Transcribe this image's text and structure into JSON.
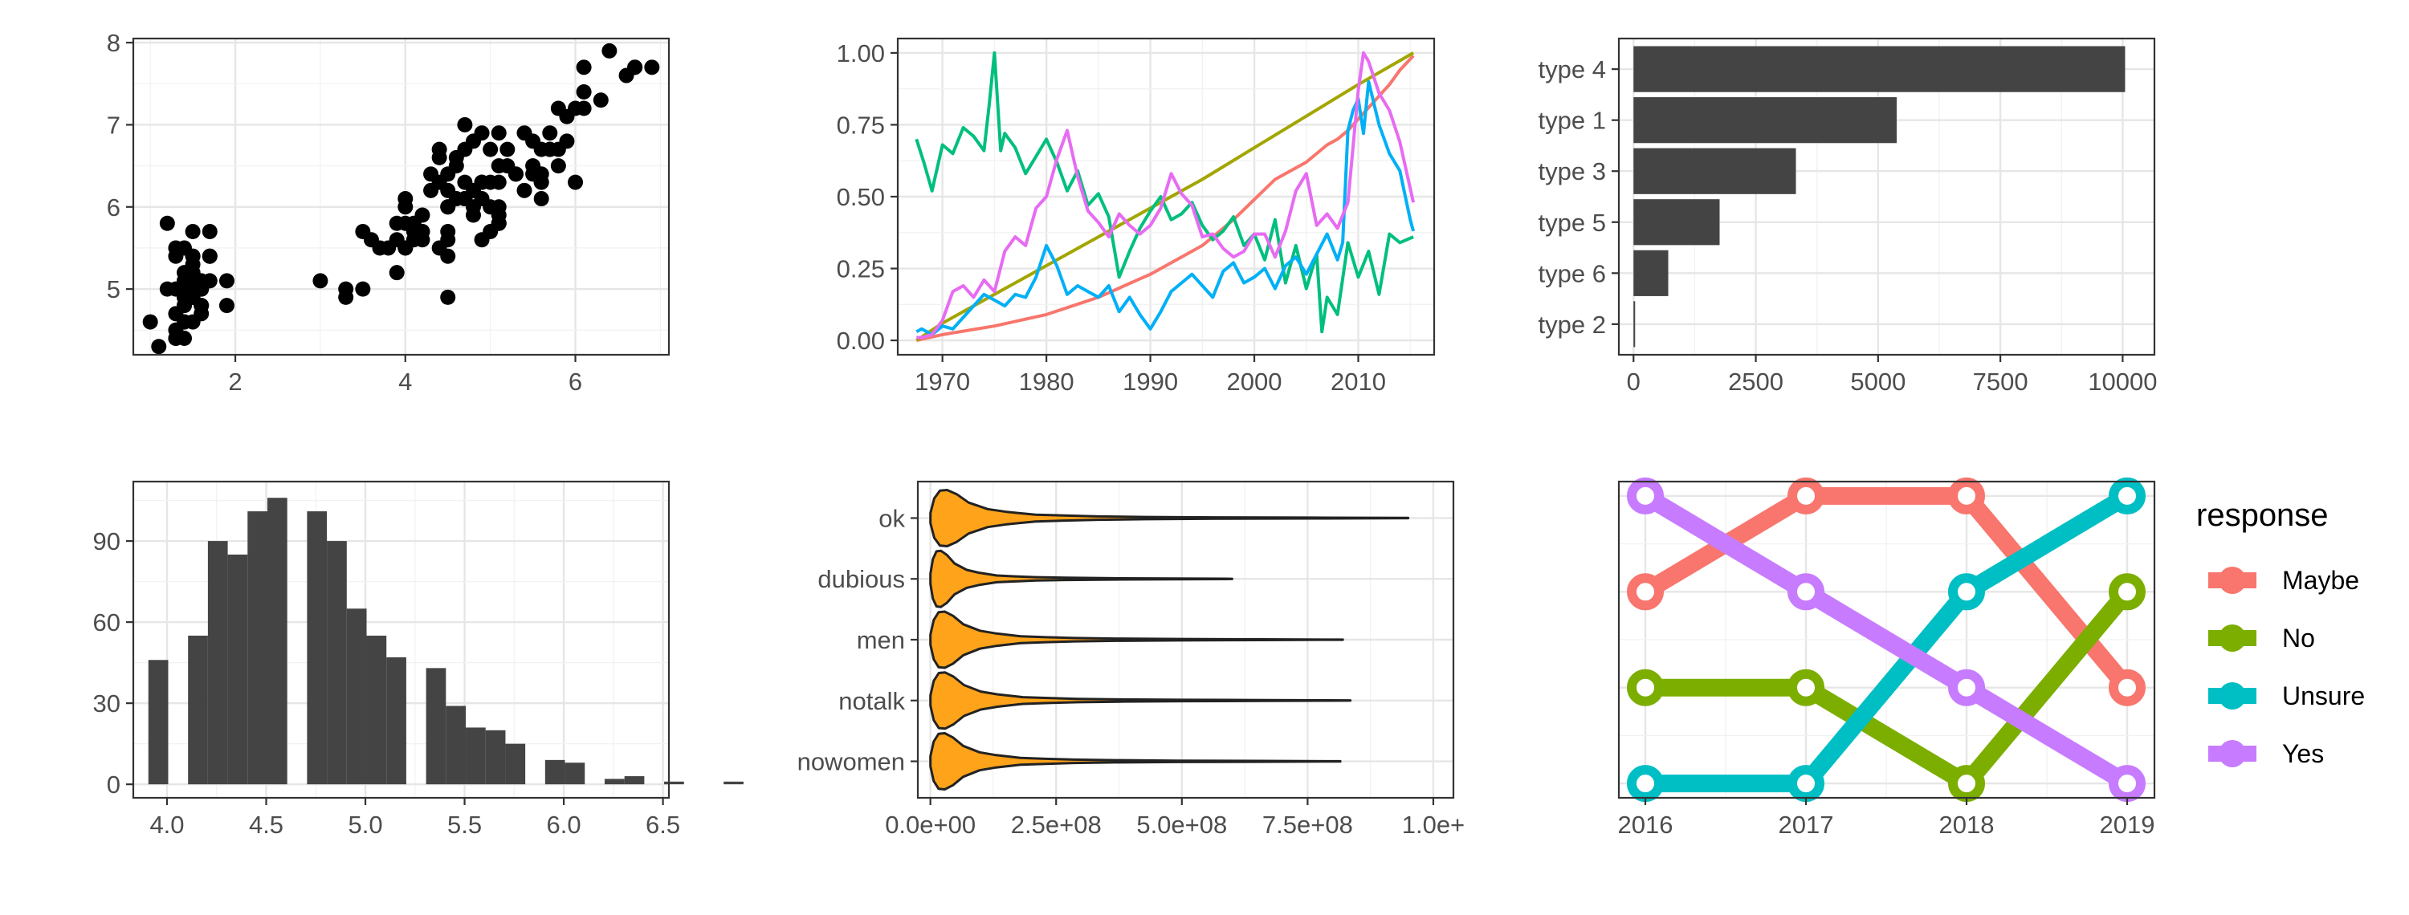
{
  "colors": {
    "points": "#000000",
    "bars": "#444444",
    "violin_fill": "#FFA31A",
    "violin_stroke": "#222222",
    "grid_major": "#e6e6e6",
    "grid_minor": "#f2f2f2",
    "panel_border": "#333333"
  },
  "chart_data": [
    {
      "type": "scatter",
      "xlim": [
        0.8,
        7.1
      ],
      "ylim": [
        4.2,
        8.05
      ],
      "xticks": [
        2,
        4,
        6
      ],
      "yticks": [
        5,
        6,
        7,
        8
      ],
      "grid": true,
      "points": [
        [
          1.4,
          5.1
        ],
        [
          1.4,
          4.9
        ],
        [
          1.3,
          4.7
        ],
        [
          1.5,
          4.6
        ],
        [
          1.4,
          5.0
        ],
        [
          1.7,
          5.4
        ],
        [
          1.4,
          4.6
        ],
        [
          1.5,
          5.0
        ],
        [
          1.4,
          4.4
        ],
        [
          1.5,
          4.9
        ],
        [
          1.5,
          5.4
        ],
        [
          1.6,
          4.8
        ],
        [
          1.4,
          4.8
        ],
        [
          1.1,
          4.3
        ],
        [
          1.2,
          5.8
        ],
        [
          1.5,
          5.7
        ],
        [
          1.3,
          5.4
        ],
        [
          1.4,
          5.1
        ],
        [
          1.7,
          5.7
        ],
        [
          1.5,
          5.1
        ],
        [
          1.7,
          5.4
        ],
        [
          1.5,
          5.1
        ],
        [
          1.0,
          4.6
        ],
        [
          1.7,
          5.1
        ],
        [
          1.9,
          4.8
        ],
        [
          1.6,
          5.0
        ],
        [
          1.6,
          5.0
        ],
        [
          1.5,
          5.2
        ],
        [
          1.4,
          5.2
        ],
        [
          1.6,
          4.7
        ],
        [
          1.6,
          4.8
        ],
        [
          1.5,
          5.4
        ],
        [
          1.5,
          5.2
        ],
        [
          1.4,
          5.5
        ],
        [
          1.5,
          4.9
        ],
        [
          1.2,
          5.0
        ],
        [
          1.3,
          5.5
        ],
        [
          1.4,
          4.9
        ],
        [
          1.3,
          4.4
        ],
        [
          1.5,
          5.1
        ],
        [
          1.3,
          5.0
        ],
        [
          1.3,
          4.5
        ],
        [
          1.3,
          4.4
        ],
        [
          1.6,
          5.0
        ],
        [
          1.9,
          5.1
        ],
        [
          1.4,
          4.8
        ],
        [
          1.6,
          5.1
        ],
        [
          1.4,
          4.6
        ],
        [
          1.5,
          5.3
        ],
        [
          1.4,
          5.0
        ],
        [
          4.7,
          7.0
        ],
        [
          4.5,
          6.4
        ],
        [
          4.9,
          6.9
        ],
        [
          4.0,
          5.5
        ],
        [
          4.6,
          6.5
        ],
        [
          4.5,
          5.7
        ],
        [
          4.7,
          6.3
        ],
        [
          3.3,
          4.9
        ],
        [
          4.6,
          6.6
        ],
        [
          3.9,
          5.2
        ],
        [
          3.5,
          5.0
        ],
        [
          4.2,
          5.9
        ],
        [
          4.0,
          6.0
        ],
        [
          4.7,
          6.1
        ],
        [
          3.6,
          5.6
        ],
        [
          4.4,
          6.7
        ],
        [
          4.5,
          5.6
        ],
        [
          4.1,
          5.8
        ],
        [
          4.5,
          6.2
        ],
        [
          3.9,
          5.6
        ],
        [
          4.8,
          5.9
        ],
        [
          4.0,
          6.1
        ],
        [
          4.9,
          6.3
        ],
        [
          4.7,
          6.1
        ],
        [
          4.3,
          6.4
        ],
        [
          4.4,
          6.6
        ],
        [
          4.8,
          6.8
        ],
        [
          5.0,
          6.7
        ],
        [
          4.5,
          6.0
        ],
        [
          3.5,
          5.7
        ],
        [
          3.8,
          5.5
        ],
        [
          3.7,
          5.5
        ],
        [
          3.9,
          5.8
        ],
        [
          5.1,
          6.0
        ],
        [
          4.5,
          5.4
        ],
        [
          4.5,
          6.0
        ],
        [
          4.7,
          6.7
        ],
        [
          4.4,
          6.3
        ],
        [
          4.1,
          5.6
        ],
        [
          4.0,
          5.5
        ],
        [
          4.4,
          5.5
        ],
        [
          4.6,
          6.1
        ],
        [
          4.0,
          5.8
        ],
        [
          3.3,
          5.0
        ],
        [
          4.2,
          5.6
        ],
        [
          4.2,
          5.7
        ],
        [
          4.2,
          5.7
        ],
        [
          4.3,
          6.2
        ],
        [
          3.0,
          5.1
        ],
        [
          4.1,
          5.7
        ],
        [
          6.0,
          6.3
        ],
        [
          5.1,
          5.8
        ],
        [
          5.9,
          7.1
        ],
        [
          5.6,
          6.3
        ],
        [
          5.8,
          6.5
        ],
        [
          6.6,
          7.6
        ],
        [
          4.5,
          4.9
        ],
        [
          6.3,
          7.3
        ],
        [
          5.8,
          6.7
        ],
        [
          6.1,
          7.2
        ],
        [
          5.1,
          6.5
        ],
        [
          5.3,
          6.4
        ],
        [
          5.5,
          6.8
        ],
        [
          5.0,
          5.7
        ],
        [
          5.1,
          5.8
        ],
        [
          5.3,
          6.4
        ],
        [
          5.5,
          6.5
        ],
        [
          6.7,
          7.7
        ],
        [
          6.9,
          7.7
        ],
        [
          5.0,
          6.0
        ],
        [
          5.7,
          6.9
        ],
        [
          4.9,
          5.6
        ],
        [
          6.7,
          7.7
        ],
        [
          4.9,
          6.3
        ],
        [
          5.7,
          6.7
        ],
        [
          6.0,
          7.2
        ],
        [
          4.8,
          6.2
        ],
        [
          4.9,
          6.1
        ],
        [
          5.6,
          6.4
        ],
        [
          5.8,
          7.2
        ],
        [
          6.1,
          7.4
        ],
        [
          6.4,
          7.9
        ],
        [
          5.6,
          6.4
        ],
        [
          5.1,
          6.3
        ],
        [
          5.6,
          6.1
        ],
        [
          6.1,
          7.7
        ],
        [
          5.6,
          6.3
        ],
        [
          5.5,
          6.4
        ],
        [
          4.8,
          6.0
        ],
        [
          5.4,
          6.9
        ],
        [
          5.6,
          6.7
        ],
        [
          5.1,
          6.9
        ],
        [
          5.1,
          5.8
        ],
        [
          5.9,
          6.8
        ],
        [
          5.7,
          6.7
        ],
        [
          5.2,
          6.7
        ],
        [
          5.0,
          6.3
        ],
        [
          5.2,
          6.5
        ],
        [
          5.4,
          6.2
        ],
        [
          5.1,
          5.9
        ]
      ]
    },
    {
      "type": "line",
      "xlim": [
        1965.7,
        2017.3
      ],
      "ylim": [
        -0.05,
        1.05
      ],
      "xticks": [
        1970,
        1980,
        1990,
        2000,
        2010
      ],
      "yticks": [
        0.0,
        0.25,
        0.5,
        0.75,
        1.0
      ],
      "ytick_labels": [
        "0.00",
        "0.25",
        "0.50",
        "0.75",
        "1.00"
      ],
      "grid": true,
      "series": [
        {
          "color": "#F8766D",
          "x": [
            1967.5,
            1970,
            1975,
            1980,
            1985,
            1990,
            1995,
            1998,
            2000,
            2002,
            2005,
            2007,
            2008,
            2009,
            2010,
            2011,
            2012,
            2013,
            2014,
            2015.3
          ],
          "values": [
            0.0,
            0.02,
            0.05,
            0.09,
            0.15,
            0.23,
            0.33,
            0.42,
            0.49,
            0.56,
            0.62,
            0.68,
            0.7,
            0.73,
            0.77,
            0.81,
            0.85,
            0.89,
            0.94,
            0.99
          ]
        },
        {
          "color": "#A3A500",
          "x": [
            1967.5,
            1970,
            1975,
            1980,
            1985,
            1990,
            1995,
            2000,
            2005,
            2010,
            2015.3
          ],
          "values": [
            0.0,
            0.06,
            0.16,
            0.26,
            0.36,
            0.46,
            0.56,
            0.67,
            0.78,
            0.89,
            1.0
          ]
        },
        {
          "color": "#00BF7D",
          "x": [
            1967.5,
            1968.2,
            1969,
            1970,
            1971,
            1972,
            1973,
            1974,
            1974.5,
            1975,
            1975.6,
            1976,
            1977,
            1978,
            1979,
            1980,
            1981,
            1982,
            1983,
            1984,
            1985,
            1986,
            1987,
            1988,
            1989,
            1990,
            1991,
            1992,
            1993,
            1994,
            1995,
            1996,
            1997,
            1998,
            1999,
            2000,
            2001,
            2002,
            2003,
            2004,
            2005,
            2006,
            2006.5,
            2007,
            2008,
            2009,
            2010,
            2011,
            2012,
            2013,
            2014,
            2015.3
          ],
          "values": [
            0.7,
            0.62,
            0.52,
            0.68,
            0.65,
            0.74,
            0.71,
            0.66,
            0.82,
            1.0,
            0.66,
            0.72,
            0.67,
            0.58,
            0.64,
            0.7,
            0.62,
            0.52,
            0.59,
            0.47,
            0.51,
            0.43,
            0.22,
            0.31,
            0.39,
            0.45,
            0.5,
            0.42,
            0.44,
            0.48,
            0.4,
            0.35,
            0.38,
            0.43,
            0.33,
            0.37,
            0.28,
            0.42,
            0.2,
            0.33,
            0.18,
            0.3,
            0.03,
            0.15,
            0.09,
            0.34,
            0.22,
            0.31,
            0.16,
            0.37,
            0.34,
            0.36
          ]
        },
        {
          "color": "#00B0F6",
          "x": [
            1967.5,
            1968,
            1969,
            1970,
            1971,
            1972,
            1973,
            1974,
            1975,
            1976,
            1977,
            1978,
            1979,
            1980,
            1981,
            1982,
            1983,
            1984,
            1985,
            1986,
            1987,
            1988,
            1989,
            1990,
            1991,
            1992,
            1993,
            1994,
            1995,
            1996,
            1997,
            1998,
            1999,
            2000,
            2001,
            2002,
            2003,
            2004,
            2005,
            2006,
            2007,
            2008,
            2008.5,
            2009,
            2009.5,
            2010,
            2010.5,
            2011,
            2012,
            2013,
            2014,
            2015,
            2015.3
          ],
          "values": [
            0.03,
            0.04,
            0.02,
            0.05,
            0.04,
            0.08,
            0.12,
            0.16,
            0.14,
            0.12,
            0.16,
            0.15,
            0.22,
            0.33,
            0.26,
            0.16,
            0.19,
            0.17,
            0.15,
            0.19,
            0.1,
            0.15,
            0.09,
            0.04,
            0.1,
            0.17,
            0.2,
            0.23,
            0.19,
            0.15,
            0.24,
            0.27,
            0.2,
            0.22,
            0.25,
            0.18,
            0.26,
            0.29,
            0.23,
            0.3,
            0.37,
            0.28,
            0.34,
            0.73,
            0.8,
            0.84,
            0.72,
            0.9,
            0.75,
            0.65,
            0.59,
            0.42,
            0.38
          ]
        },
        {
          "color": "#E76BF3",
          "x": [
            1967.5,
            1968,
            1969,
            1970,
            1971,
            1972,
            1973,
            1974,
            1975,
            1976,
            1977,
            1978,
            1979,
            1980,
            1981,
            1982,
            1983,
            1984,
            1985,
            1986,
            1987,
            1988,
            1989,
            1990,
            1991,
            1992,
            1993,
            1994,
            1995,
            1996,
            1997,
            1998,
            1999,
            2000,
            2001,
            2002,
            2003,
            2004,
            2005,
            2006,
            2007,
            2008,
            2009,
            2010,
            2010.5,
            2011,
            2012,
            2013,
            2014,
            2015.3
          ],
          "values": [
            0.01,
            0.01,
            0.02,
            0.07,
            0.17,
            0.19,
            0.15,
            0.21,
            0.17,
            0.31,
            0.36,
            0.33,
            0.46,
            0.5,
            0.63,
            0.73,
            0.57,
            0.45,
            0.41,
            0.36,
            0.44,
            0.4,
            0.37,
            0.4,
            0.46,
            0.58,
            0.51,
            0.47,
            0.36,
            0.37,
            0.32,
            0.29,
            0.31,
            0.37,
            0.37,
            0.29,
            0.38,
            0.52,
            0.58,
            0.4,
            0.44,
            0.39,
            0.48,
            0.87,
            1.0,
            0.97,
            0.86,
            0.8,
            0.69,
            0.48
          ]
        }
      ]
    },
    {
      "type": "bar",
      "orientation": "horizontal",
      "categories": [
        "type 4",
        "type 1",
        "type 3",
        "type 5",
        "type 6",
        "type 2"
      ],
      "values": [
        10050,
        5380,
        3320,
        1760,
        710,
        20
      ],
      "xlim": [
        -300,
        10650
      ],
      "xticks": [
        0,
        2500,
        5000,
        7500,
        10000
      ],
      "grid": true
    },
    {
      "type": "bar",
      "subtype": "histogram",
      "xlim": [
        3.83,
        6.53
      ],
      "ylim": [
        -5,
        112
      ],
      "xticks": [
        4.0,
        4.5,
        5.0,
        5.5,
        6.0,
        6.5
      ],
      "xtick_labels": [
        "4.0",
        "4.5",
        "5.0",
        "5.5",
        "6.0",
        "6.5"
      ],
      "yticks": [
        0,
        30,
        60,
        90
      ],
      "bin_start": 3.906,
      "bin_width": 0.1,
      "values": [
        46,
        0,
        55,
        90,
        85,
        101,
        106,
        0,
        101,
        90,
        65,
        55,
        47,
        0,
        43,
        29,
        21,
        20,
        15,
        0,
        9,
        8,
        0,
        2,
        3,
        0,
        1,
        0,
        0,
        1
      ],
      "grid": true
    },
    {
      "type": "violin",
      "categories": [
        "ok",
        "dubious",
        "men",
        "notalk",
        "nowomen"
      ],
      "max_values": [
        950000000,
        600000000,
        820000000,
        835000000,
        815000000
      ],
      "xlim": [
        -25000000,
        1040000000
      ],
      "xticks": [
        0,
        250000000,
        500000000,
        750000000,
        1000000000
      ],
      "xtick_labels": [
        "0.0e+00",
        "2.5e+08",
        "5.0e+08",
        "7.5e+08",
        "1.0e+"
      ],
      "grid": true
    },
    {
      "type": "line",
      "subtype": "bump",
      "categories": [
        "2016",
        "2017",
        "2018",
        "2019"
      ],
      "ylim": [
        0.85,
        4.15
      ],
      "series": [
        {
          "name": "Maybe",
          "color": "#F8766D",
          "values": [
            3,
            4,
            4,
            2
          ]
        },
        {
          "name": "No",
          "color": "#7CAE00",
          "values": [
            2,
            2,
            1,
            3
          ]
        },
        {
          "name": "Unsure",
          "color": "#00BFC4",
          "values": [
            1,
            1,
            3,
            4
          ]
        },
        {
          "name": "Yes",
          "color": "#C77CFF",
          "values": [
            4,
            3,
            2,
            1
          ]
        }
      ],
      "legend": {
        "title": "response",
        "position": "right"
      },
      "grid": true
    }
  ]
}
